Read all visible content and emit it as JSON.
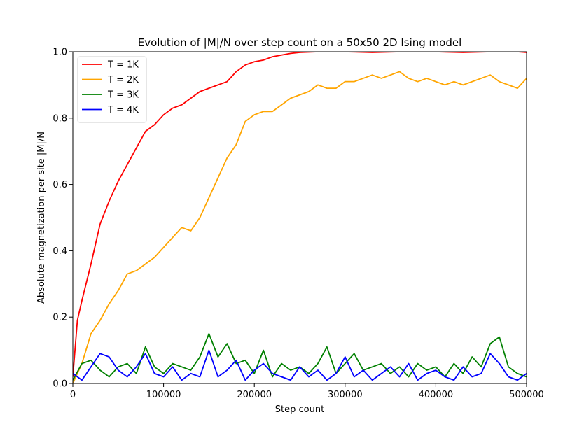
{
  "chart_data": {
    "type": "line",
    "title": "Evolution of |M|/N over step count on a 50x50 2D Ising model",
    "xlabel": "Step count",
    "ylabel": "Absolute magnetization per site |M|/N",
    "xlim": [
      0,
      500000
    ],
    "ylim": [
      0,
      1.0
    ],
    "xticks": [
      0,
      100000,
      200000,
      300000,
      400000,
      500000
    ],
    "xtick_labels": [
      "0",
      "100000",
      "200000",
      "300000",
      "400000",
      "500000"
    ],
    "yticks": [
      0,
      0.2,
      0.4,
      0.6,
      0.8,
      1.0
    ],
    "ytick_labels": [
      "0.0",
      "0.2",
      "0.4",
      "0.6",
      "0.8",
      "1.0"
    ],
    "grid": false,
    "legend_position": "top-left",
    "series": [
      {
        "name": "T = 1K",
        "color": "#ff0000",
        "x": [
          0,
          5000,
          10000,
          20000,
          30000,
          40000,
          50000,
          60000,
          70000,
          80000,
          90000,
          100000,
          110000,
          120000,
          130000,
          140000,
          150000,
          160000,
          170000,
          180000,
          190000,
          200000,
          210000,
          220000,
          230000,
          240000,
          250000,
          270000,
          300000,
          330000,
          360000,
          400000,
          430000,
          460000,
          490000,
          500000
        ],
        "y": [
          0.02,
          0.19,
          0.25,
          0.36,
          0.48,
          0.55,
          0.61,
          0.66,
          0.71,
          0.76,
          0.78,
          0.81,
          0.83,
          0.84,
          0.86,
          0.88,
          0.89,
          0.9,
          0.91,
          0.94,
          0.96,
          0.97,
          0.975,
          0.985,
          0.99,
          0.995,
          0.998,
          1.0,
          1.0,
          0.998,
          1.0,
          1.0,
          0.998,
          1.0,
          1.0,
          0.998
        ]
      },
      {
        "name": "T = 2K",
        "color": "#ffa500",
        "x": [
          0,
          10000,
          20000,
          30000,
          40000,
          50000,
          60000,
          70000,
          80000,
          90000,
          100000,
          110000,
          120000,
          130000,
          140000,
          150000,
          160000,
          170000,
          180000,
          190000,
          200000,
          210000,
          220000,
          230000,
          240000,
          250000,
          260000,
          270000,
          280000,
          290000,
          300000,
          310000,
          320000,
          330000,
          340000,
          350000,
          360000,
          370000,
          380000,
          390000,
          400000,
          410000,
          420000,
          430000,
          440000,
          450000,
          460000,
          470000,
          480000,
          490000,
          500000
        ],
        "y": [
          0.0,
          0.06,
          0.15,
          0.19,
          0.24,
          0.28,
          0.33,
          0.34,
          0.36,
          0.38,
          0.41,
          0.44,
          0.47,
          0.46,
          0.5,
          0.56,
          0.62,
          0.68,
          0.72,
          0.79,
          0.81,
          0.82,
          0.82,
          0.84,
          0.86,
          0.87,
          0.88,
          0.9,
          0.89,
          0.89,
          0.91,
          0.91,
          0.92,
          0.93,
          0.92,
          0.93,
          0.94,
          0.92,
          0.91,
          0.92,
          0.91,
          0.9,
          0.91,
          0.9,
          0.91,
          0.92,
          0.93,
          0.91,
          0.9,
          0.89,
          0.92
        ]
      },
      {
        "name": "T = 3K",
        "color": "#008000",
        "x": [
          0,
          10000,
          20000,
          30000,
          40000,
          50000,
          60000,
          70000,
          80000,
          90000,
          100000,
          110000,
          120000,
          130000,
          140000,
          150000,
          160000,
          170000,
          180000,
          190000,
          200000,
          210000,
          220000,
          230000,
          240000,
          250000,
          260000,
          270000,
          280000,
          290000,
          300000,
          310000,
          320000,
          330000,
          340000,
          350000,
          360000,
          370000,
          380000,
          390000,
          400000,
          410000,
          420000,
          430000,
          440000,
          450000,
          460000,
          470000,
          480000,
          490000,
          500000
        ],
        "y": [
          0.01,
          0.06,
          0.07,
          0.04,
          0.02,
          0.05,
          0.06,
          0.03,
          0.11,
          0.05,
          0.03,
          0.06,
          0.05,
          0.04,
          0.08,
          0.15,
          0.08,
          0.12,
          0.06,
          0.07,
          0.03,
          0.1,
          0.02,
          0.06,
          0.04,
          0.05,
          0.03,
          0.06,
          0.11,
          0.03,
          0.06,
          0.09,
          0.04,
          0.05,
          0.06,
          0.03,
          0.05,
          0.02,
          0.06,
          0.04,
          0.05,
          0.02,
          0.06,
          0.03,
          0.08,
          0.05,
          0.12,
          0.14,
          0.05,
          0.03,
          0.02
        ]
      },
      {
        "name": "T = 4K",
        "color": "#0000ff",
        "x": [
          0,
          10000,
          20000,
          30000,
          40000,
          50000,
          60000,
          70000,
          80000,
          90000,
          100000,
          110000,
          120000,
          130000,
          140000,
          150000,
          160000,
          170000,
          180000,
          190000,
          200000,
          210000,
          220000,
          230000,
          240000,
          250000,
          260000,
          270000,
          280000,
          290000,
          300000,
          310000,
          320000,
          330000,
          340000,
          350000,
          360000,
          370000,
          380000,
          390000,
          400000,
          410000,
          420000,
          430000,
          440000,
          450000,
          460000,
          470000,
          480000,
          490000,
          500000
        ],
        "y": [
          0.03,
          0.01,
          0.05,
          0.09,
          0.08,
          0.04,
          0.02,
          0.05,
          0.09,
          0.03,
          0.02,
          0.05,
          0.01,
          0.03,
          0.02,
          0.1,
          0.02,
          0.04,
          0.07,
          0.01,
          0.04,
          0.06,
          0.03,
          0.02,
          0.01,
          0.05,
          0.02,
          0.04,
          0.01,
          0.03,
          0.08,
          0.02,
          0.04,
          0.01,
          0.03,
          0.05,
          0.02,
          0.06,
          0.01,
          0.03,
          0.04,
          0.02,
          0.01,
          0.05,
          0.02,
          0.03,
          0.09,
          0.06,
          0.02,
          0.01,
          0.03
        ]
      }
    ]
  }
}
